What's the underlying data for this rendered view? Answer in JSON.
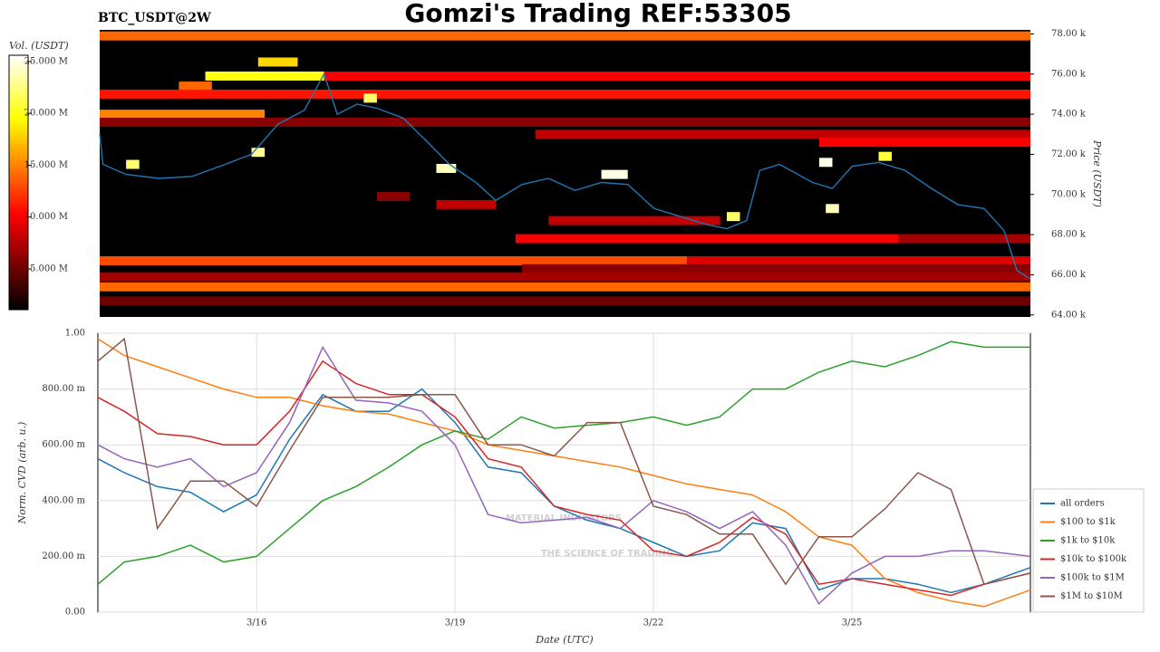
{
  "chart_data": [
    {
      "type": "heatmap",
      "title": "Gomzi's Trading REF:53305",
      "subtitle": "BTC_USDT@2W",
      "y_label": "Price (USDT)",
      "colorbar_label": "Vol. (USDT)",
      "xlim": [
        13.6,
        27.7
      ],
      "ylim": [
        63.9,
        78.2
      ],
      "yticks": [
        {
          "value": 64,
          "label": "64.00 k"
        },
        {
          "value": 66,
          "label": "66.00 k"
        },
        {
          "value": 68,
          "label": "68.00 k"
        },
        {
          "value": 70,
          "label": "70.00 k"
        },
        {
          "value": 72,
          "label": "72.00 k"
        },
        {
          "value": 74,
          "label": "74.00 k"
        },
        {
          "value": 76,
          "label": "76.00 k"
        },
        {
          "value": 78,
          "label": "78.00 k"
        }
      ],
      "clim": [
        1.07,
        25.6
      ],
      "cticks": [
        {
          "value": 5,
          "label": "5.000 M"
        },
        {
          "value": 10,
          "label": "10.000 M"
        },
        {
          "value": 15,
          "label": "15.000 M"
        },
        {
          "value": 20,
          "label": "20.000 M"
        },
        {
          "value": 25,
          "label": "25.000 M"
        }
      ],
      "bands": [
        [
          77.9,
          13.6,
          27.7,
          14
        ],
        [
          76.6,
          16.0,
          16.6,
          18
        ],
        [
          75.9,
          15.2,
          17.0,
          20
        ],
        [
          75.9,
          17.0,
          27.7,
          10
        ],
        [
          75.4,
          14.8,
          15.3,
          14
        ],
        [
          75.0,
          13.6,
          27.7,
          11
        ],
        [
          74.0,
          13.6,
          16.1,
          15
        ],
        [
          73.6,
          13.6,
          27.7,
          6
        ],
        [
          73.0,
          20.2,
          27.7,
          8
        ],
        [
          72.6,
          24.5,
          27.7,
          10
        ],
        [
          69.9,
          17.8,
          18.3,
          6
        ],
        [
          69.5,
          18.7,
          19.6,
          8
        ],
        [
          68.7,
          20.4,
          23.0,
          8
        ],
        [
          67.8,
          19.9,
          25.7,
          10
        ],
        [
          67.8,
          25.7,
          27.7,
          7
        ],
        [
          66.7,
          13.6,
          22.5,
          13
        ],
        [
          66.7,
          22.5,
          27.7,
          9
        ],
        [
          66.3,
          20.0,
          27.7,
          6
        ],
        [
          65.9,
          13.6,
          27.7,
          7
        ],
        [
          65.4,
          13.6,
          27.7,
          14
        ],
        [
          64.7,
          13.6,
          27.7,
          5
        ],
        [
          71.5,
          14.0,
          14.2,
          22
        ],
        [
          72.1,
          15.9,
          16.1,
          23
        ],
        [
          71.3,
          18.7,
          19.0,
          24
        ],
        [
          71.0,
          21.2,
          21.6,
          25
        ],
        [
          71.6,
          24.5,
          24.7,
          25
        ],
        [
          69.3,
          24.6,
          24.8,
          24
        ],
        [
          68.9,
          23.1,
          23.3,
          22
        ],
        [
          74.8,
          17.6,
          17.8,
          22
        ],
        [
          71.9,
          25.4,
          25.6,
          21
        ]
      ],
      "price": {
        "color": "#1f77b4",
        "x": [
          13.6,
          13.65,
          14,
          14.5,
          15,
          15.5,
          15.9,
          16.3,
          16.7,
          17.0,
          17.2,
          17.5,
          17.8,
          18.2,
          18.6,
          18.9,
          19.3,
          19.6,
          20.0,
          20.4,
          20.8,
          21.2,
          21.6,
          22.0,
          22.4,
          22.8,
          23.1,
          23.4,
          23.6,
          23.9,
          24.4,
          24.7,
          25.0,
          25.4,
          25.8,
          26.2,
          26.6,
          27.0,
          27.3,
          27.5,
          27.7
        ],
        "values": [
          73.0,
          71.5,
          71.0,
          70.8,
          70.9,
          71.5,
          72.0,
          73.5,
          74.2,
          76.0,
          74.0,
          74.5,
          74.3,
          73.8,
          72.5,
          71.5,
          70.6,
          69.7,
          70.5,
          70.8,
          70.2,
          70.6,
          70.5,
          69.3,
          68.9,
          68.5,
          68.3,
          68.7,
          71.2,
          71.5,
          70.6,
          70.3,
          71.4,
          71.6,
          71.2,
          70.3,
          69.5,
          69.3,
          68.2,
          66.2,
          65.8
        ]
      }
    },
    {
      "type": "line",
      "x_label": "Date (UTC)",
      "y_label": "Norm. CVD (arb. u.)",
      "watermark": "MATERIAL INDICATORS",
      "watermark_sub": "THE SCIENCE OF TRADING",
      "xlim": [
        13.6,
        27.7
      ],
      "ylim": [
        0,
        1
      ],
      "xticks": [
        {
          "value": 16,
          "label": "3/16"
        },
        {
          "value": 19,
          "label": "3/19"
        },
        {
          "value": 22,
          "label": "3/22"
        },
        {
          "value": 25,
          "label": "3/25"
        }
      ],
      "yticks": [
        {
          "value": 0,
          "label": "0.00"
        },
        {
          "value": 0.2,
          "label": "200.00 m"
        },
        {
          "value": 0.4,
          "label": "400.00 m"
        },
        {
          "value": 0.6,
          "label": "600.00 m"
        },
        {
          "value": 0.8,
          "label": "800.00 m"
        },
        {
          "value": 1,
          "label": "1.00"
        }
      ],
      "grid": true,
      "legend": "lower-right-outside",
      "x": [
        13.6,
        14,
        14.5,
        15,
        15.5,
        16,
        16.5,
        17,
        17.5,
        18,
        18.5,
        19,
        19.5,
        20,
        20.5,
        21,
        21.5,
        22,
        22.5,
        23,
        23.5,
        24,
        24.5,
        25,
        25.5,
        26,
        26.5,
        27,
        27.7
      ],
      "series": [
        {
          "name": "all orders",
          "color": "#1f77b4",
          "values": [
            0.55,
            0.5,
            0.45,
            0.43,
            0.36,
            0.42,
            0.62,
            0.78,
            0.72,
            0.72,
            0.8,
            0.68,
            0.52,
            0.5,
            0.38,
            0.33,
            0.3,
            0.25,
            0.2,
            0.22,
            0.32,
            0.3,
            0.08,
            0.12,
            0.12,
            0.1,
            0.07,
            0.1,
            0.16
          ]
        },
        {
          "name": "$100 to $1k",
          "color": "#ff7f0e",
          "values": [
            0.98,
            0.92,
            0.88,
            0.84,
            0.8,
            0.77,
            0.77,
            0.74,
            0.72,
            0.71,
            0.68,
            0.65,
            0.6,
            0.58,
            0.56,
            0.54,
            0.52,
            0.49,
            0.46,
            0.44,
            0.42,
            0.36,
            0.27,
            0.24,
            0.12,
            0.07,
            0.04,
            0.02,
            0.08
          ]
        },
        {
          "name": "$1k to $10k",
          "color": "#2ca02c",
          "values": [
            0.1,
            0.18,
            0.2,
            0.24,
            0.18,
            0.2,
            0.3,
            0.4,
            0.45,
            0.52,
            0.6,
            0.65,
            0.62,
            0.7,
            0.66,
            0.67,
            0.68,
            0.7,
            0.67,
            0.7,
            0.8,
            0.8,
            0.86,
            0.9,
            0.88,
            0.92,
            0.97,
            0.95,
            0.95
          ]
        },
        {
          "name": "$10k to $100k",
          "color": "#d62728",
          "values": [
            0.77,
            0.72,
            0.64,
            0.63,
            0.6,
            0.6,
            0.72,
            0.9,
            0.82,
            0.78,
            0.78,
            0.7,
            0.55,
            0.52,
            0.38,
            0.35,
            0.33,
            0.22,
            0.2,
            0.25,
            0.34,
            0.28,
            0.1,
            0.12,
            0.1,
            0.08,
            0.06,
            0.1,
            0.14
          ]
        },
        {
          "name": "$100k to $1M",
          "color": "#9467bd",
          "values": [
            0.6,
            0.55,
            0.52,
            0.55,
            0.45,
            0.5,
            0.68,
            0.95,
            0.76,
            0.75,
            0.72,
            0.6,
            0.35,
            0.32,
            0.33,
            0.34,
            0.3,
            0.4,
            0.36,
            0.3,
            0.36,
            0.24,
            0.03,
            0.14,
            0.2,
            0.2,
            0.22,
            0.22,
            0.2
          ]
        },
        {
          "name": "$1M to $10M",
          "color": "#8c564b",
          "values": [
            0.9,
            0.98,
            0.3,
            0.47,
            0.47,
            0.38,
            0.58,
            0.77,
            0.77,
            0.77,
            0.78,
            0.78,
            0.6,
            0.6,
            0.56,
            0.68,
            0.68,
            0.38,
            0.35,
            0.28,
            0.28,
            0.1,
            0.27,
            0.27,
            0.37,
            0.5,
            0.44,
            0.1,
            0.14
          ]
        }
      ]
    }
  ]
}
